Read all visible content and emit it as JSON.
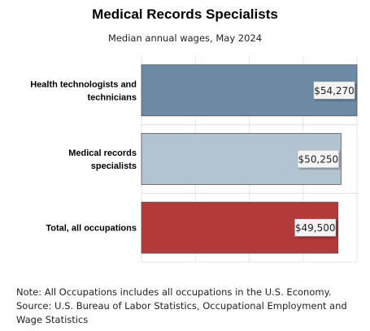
{
  "chart_data": {
    "type": "bar",
    "orientation": "horizontal",
    "title": "Medical Records Specialists",
    "subtitle": "Median annual wages, May 2024",
    "categories": [
      "Health technologists and technicians",
      "Medical records specialists",
      "Total, all occupations"
    ],
    "values": [
      54270,
      50250,
      49500
    ],
    "value_labels": [
      "$54,270",
      "$50,250",
      "$49,500"
    ],
    "colors": [
      "#6c8aa4",
      "#b4c3d0",
      "#b23a3a"
    ],
    "xlim": [
      0,
      54270
    ],
    "grid": true,
    "legend": "none"
  },
  "footer": {
    "note": "Note: All Occupations includes all occupations in the U.S. Economy.",
    "source": "Source: U.S. Bureau of Labor Statistics, Occupational Employment and Wage Statistics"
  }
}
